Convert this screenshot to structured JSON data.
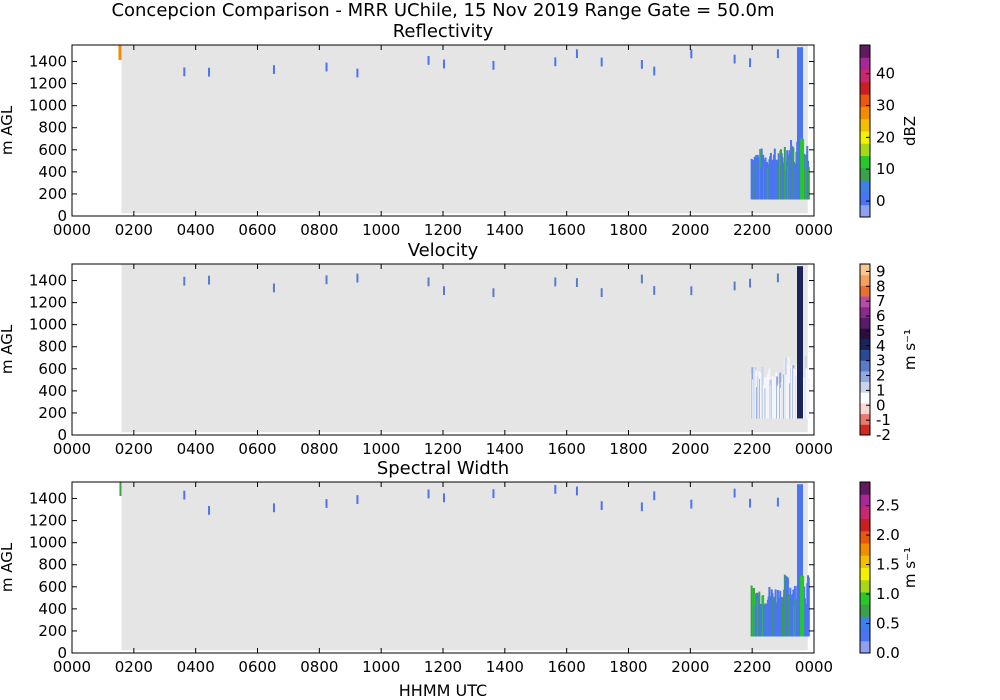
{
  "figure": {
    "suptitle": "Concepcion Comparison - MRR UChile, 15 Nov 2019 Range Gate = 50.0m",
    "xlabel": "HHMM UTC"
  },
  "chart_data": [
    {
      "type": "heatmap",
      "title": "Reflectivity",
      "xlabel": "",
      "ylabel": "m AGL",
      "xticks": [
        "0000",
        "0200",
        "0400",
        "0600",
        "0800",
        "1000",
        "1200",
        "1400",
        "1600",
        "1800",
        "2000",
        "2200",
        "0000"
      ],
      "yticks": [
        0,
        200,
        400,
        600,
        800,
        1000,
        1200,
        1400
      ],
      "xlim_hours": [
        0,
        24
      ],
      "ylim": [
        0,
        1550
      ],
      "colorbar": {
        "label": "dBZ",
        "ticks": [
          "0",
          "10",
          "20",
          "30",
          "40"
        ],
        "tick_values": [
          0,
          10,
          20,
          30,
          40
        ],
        "range": [
          -5,
          49
        ],
        "colors": [
          "#8da0f2",
          "#4a74f2",
          "#3f7fe8",
          "#3aa04a",
          "#28c828",
          "#a8d818",
          "#f2f200",
          "#f2c000",
          "#f28c00",
          "#e85810",
          "#c82020",
          "#c82870",
          "#a82898",
          "#601a60"
        ]
      },
      "nodata_color": "#e5e5e5",
      "data_start_hours": 1.6,
      "data_bottom_m": 25
    },
    {
      "type": "heatmap",
      "title": "Velocity",
      "xlabel": "",
      "ylabel": "m AGL",
      "xticks": [
        "0000",
        "0200",
        "0400",
        "0600",
        "0800",
        "1000",
        "1200",
        "1400",
        "1600",
        "1800",
        "2000",
        "2200",
        "0000"
      ],
      "yticks": [
        0,
        200,
        400,
        600,
        800,
        1000,
        1200,
        1400
      ],
      "xlim_hours": [
        0,
        24
      ],
      "ylim": [
        0,
        1550
      ],
      "colorbar": {
        "label": "m s⁻¹",
        "ticks": [
          "-2",
          "-1",
          "0",
          "1",
          "2",
          "3",
          "4",
          "5",
          "6",
          "7",
          "8",
          "9"
        ],
        "tick_values": [
          -2,
          -1,
          0,
          1,
          2,
          3,
          4,
          5,
          6,
          7,
          8,
          9
        ],
        "range": [
          -2,
          9.5
        ],
        "colors": [
          "#d02a20",
          "#e87a70",
          "#f8d8d0",
          "#ffffff",
          "#c8d4ec",
          "#90a8dc",
          "#5a7cc8",
          "#2a4a98",
          "#1a2458",
          "#2a1040",
          "#5a1a6a",
          "#8a2a8a",
          "#b84aa8",
          "#e87030",
          "#f8a060",
          "#f8c890"
        ]
      },
      "nodata_color": "#e5e5e5",
      "data_start_hours": 1.6,
      "data_bottom_m": 25
    },
    {
      "type": "heatmap",
      "title": "Spectral Width",
      "xlabel": "HHMM UTC",
      "ylabel": "m AGL",
      "xticks": [
        "0000",
        "0200",
        "0400",
        "0600",
        "0800",
        "1000",
        "1200",
        "1400",
        "1600",
        "1800",
        "2000",
        "2200",
        "0000"
      ],
      "yticks": [
        0,
        200,
        400,
        600,
        800,
        1000,
        1200,
        1400
      ],
      "xlim_hours": [
        0,
        24
      ],
      "ylim": [
        0,
        1550
      ],
      "colorbar": {
        "label": "m s⁻¹",
        "ticks": [
          "0.0",
          "0.5",
          "1.0",
          "1.5",
          "2.0",
          "2.5"
        ],
        "tick_values": [
          0,
          0.5,
          1.0,
          1.5,
          2.0,
          2.5
        ],
        "range": [
          0,
          2.9
        ],
        "colors": [
          "#8da0f2",
          "#4a74f2",
          "#3f7fe8",
          "#3aa04a",
          "#28c828",
          "#a8d818",
          "#f2f200",
          "#f2c000",
          "#f28c00",
          "#e85810",
          "#c82020",
          "#c82870",
          "#a82898",
          "#601a60"
        ]
      },
      "nodata_color": "#e5e5e5",
      "data_start_hours": 1.6,
      "data_bottom_m": 25
    }
  ]
}
